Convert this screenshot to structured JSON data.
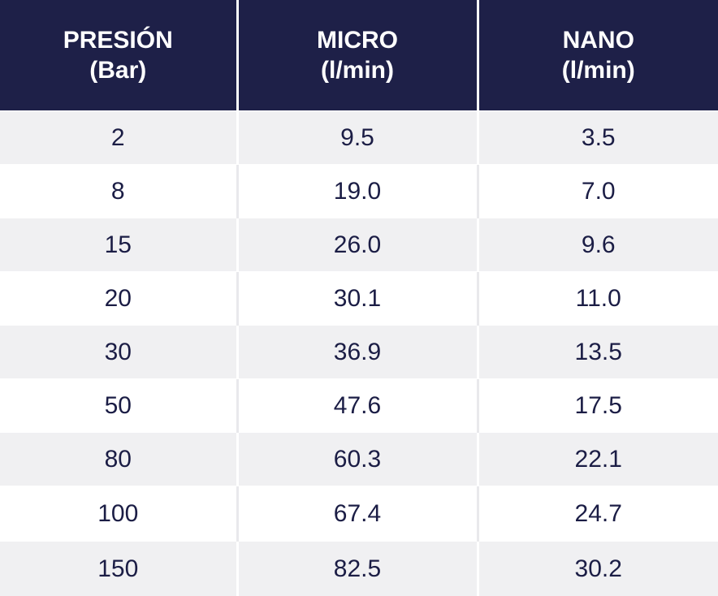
{
  "table": {
    "headers": [
      {
        "line1": "PRESIÓN",
        "line2": "(Bar)"
      },
      {
        "line1": "MICRO",
        "line2": "(l/min)"
      },
      {
        "line1": "NANO",
        "line2": "(l/min)"
      }
    ],
    "rows": [
      [
        "2",
        "9.5",
        "3.5"
      ],
      [
        "8",
        "19.0",
        "7.0"
      ],
      [
        "15",
        "26.0",
        "9.6"
      ],
      [
        "20",
        "30.1",
        "11.0"
      ],
      [
        "30",
        "36.9",
        "13.5"
      ],
      [
        "50",
        "47.6",
        "17.5"
      ],
      [
        "80",
        "60.3",
        "22.1"
      ],
      [
        "100",
        "67.4",
        "24.7"
      ],
      [
        "150",
        "82.5",
        "30.2"
      ]
    ]
  },
  "colors": {
    "header_bg": "#1e2048",
    "header_text": "#ffffff",
    "body_text": "#1b1d45",
    "stripe_bg": "#f0f0f2"
  }
}
